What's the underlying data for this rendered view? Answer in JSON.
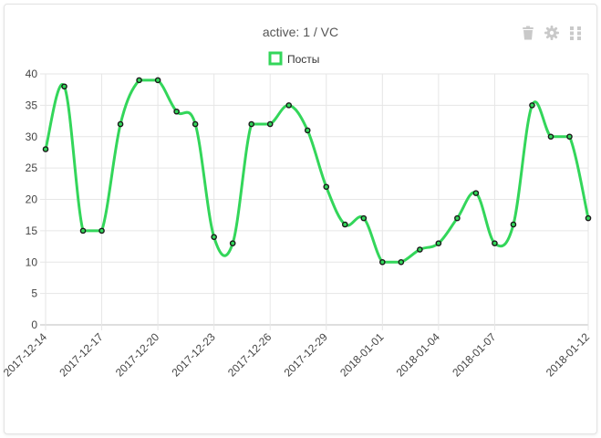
{
  "widget": {
    "title": "active: 1 / VC",
    "icons": [
      "trash-icon",
      "gear-icon",
      "drag-handle-icon"
    ]
  },
  "colors": {
    "line": "#33d65a",
    "point_stroke": "#1a1a1a",
    "grid": "#e6e6e6",
    "axis_text": "#444444"
  },
  "chart_data": {
    "type": "line",
    "legend_position": "top-center",
    "grid": true,
    "ylim": [
      0,
      40
    ],
    "y_ticks": [
      0,
      5,
      10,
      15,
      20,
      25,
      30,
      35,
      40
    ],
    "x_tick_labels": [
      "2017-12-14",
      "2017-12-17",
      "2017-12-20",
      "2017-12-23",
      "2017-12-26",
      "2017-12-29",
      "2018-01-01",
      "2018-01-04",
      "2018-01-07",
      "2018-01-12"
    ],
    "x": [
      "2017-12-14",
      "2017-12-15",
      "2017-12-16",
      "2017-12-17",
      "2017-12-18",
      "2017-12-19",
      "2017-12-20",
      "2017-12-21",
      "2017-12-22",
      "2017-12-23",
      "2017-12-24",
      "2017-12-25",
      "2017-12-26",
      "2017-12-27",
      "2017-12-28",
      "2017-12-29",
      "2017-12-30",
      "2017-12-31",
      "2018-01-01",
      "2018-01-02",
      "2018-01-03",
      "2018-01-04",
      "2018-01-05",
      "2018-01-06",
      "2018-01-07",
      "2018-01-08",
      "2018-01-09",
      "2018-01-10",
      "2018-01-11",
      "2018-01-12"
    ],
    "series": [
      {
        "name": "Посты",
        "values": [
          28,
          38,
          15,
          15,
          32,
          39,
          39,
          34,
          32,
          14,
          13,
          32,
          32,
          35,
          31,
          22,
          16,
          17,
          10,
          10,
          12,
          13,
          17,
          21,
          13,
          16,
          35,
          30,
          30,
          17
        ]
      }
    ]
  }
}
